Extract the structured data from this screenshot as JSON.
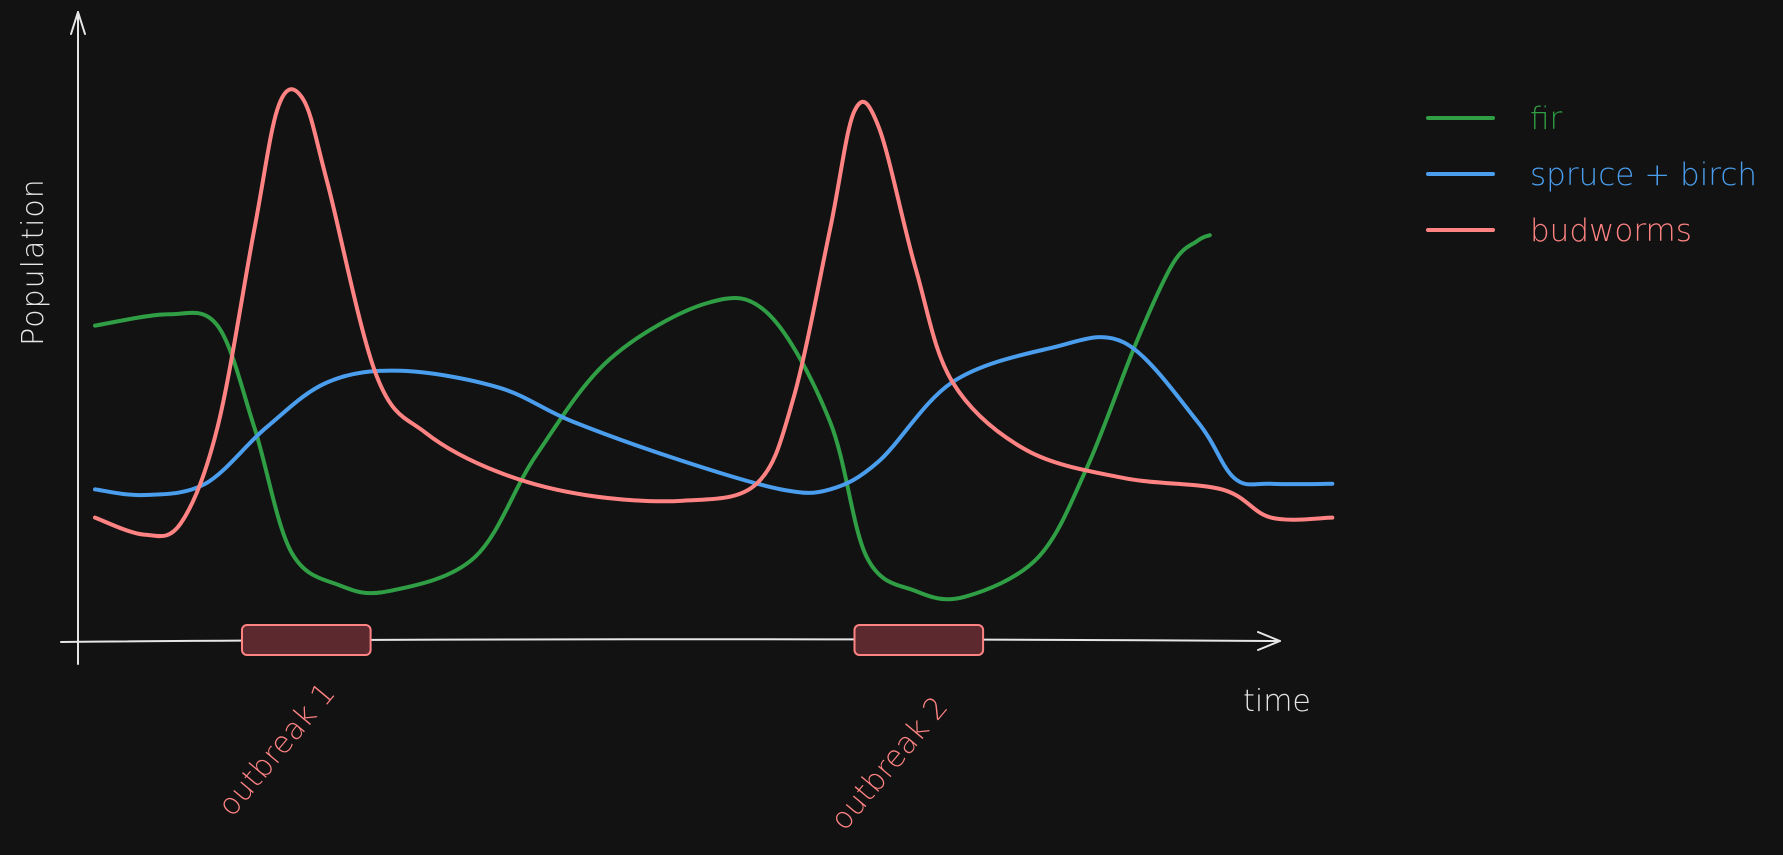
{
  "chart_data": {
    "type": "line",
    "title": "",
    "xlabel": "time",
    "ylabel": "Population",
    "xlim": [
      0,
      100
    ],
    "ylim": [
      0,
      100
    ],
    "grid": false,
    "legend_position": "top-right",
    "series": [
      {
        "name": "fir",
        "color": "#2f9e44",
        "points": [
          [
            0,
            53
          ],
          [
            6,
            55
          ],
          [
            10,
            53
          ],
          [
            13,
            35
          ],
          [
            16,
            13
          ],
          [
            20,
            7
          ],
          [
            24,
            6
          ],
          [
            31,
            12
          ],
          [
            36,
            30
          ],
          [
            42,
            47
          ],
          [
            50,
            57
          ],
          [
            55,
            55
          ],
          [
            60,
            36
          ],
          [
            63,
            12
          ],
          [
            67,
            6
          ],
          [
            71,
            5
          ],
          [
            77,
            12
          ],
          [
            81,
            28
          ],
          [
            85,
            50
          ],
          [
            88,
            64
          ],
          [
            90,
            68
          ],
          [
            91,
            69
          ]
        ]
      },
      {
        "name": "spruce + birch",
        "color": "#4a9eed",
        "points": [
          [
            0,
            24
          ],
          [
            4,
            23
          ],
          [
            9,
            25
          ],
          [
            14,
            35
          ],
          [
            19,
            43
          ],
          [
            25,
            45
          ],
          [
            33,
            42
          ],
          [
            39,
            36
          ],
          [
            48,
            29
          ],
          [
            56,
            24
          ],
          [
            60,
            24
          ],
          [
            64,
            29
          ],
          [
            70,
            43
          ],
          [
            78,
            49
          ],
          [
            84,
            50
          ],
          [
            90,
            36
          ],
          [
            93,
            26
          ],
          [
            96,
            25
          ],
          [
            101,
            25
          ]
        ]
      },
      {
        "name": "budworms",
        "color": "#ff8383",
        "points": [
          [
            0,
            19
          ],
          [
            4,
            16
          ],
          [
            7,
            18
          ],
          [
            10,
            35
          ],
          [
            13,
            70
          ],
          [
            15,
            92
          ],
          [
            17,
            93
          ],
          [
            19,
            78
          ],
          [
            23,
            44
          ],
          [
            27,
            34
          ],
          [
            33,
            27
          ],
          [
            40,
            23
          ],
          [
            48,
            22
          ],
          [
            54,
            25
          ],
          [
            57,
            40
          ],
          [
            60,
            70
          ],
          [
            62,
            91
          ],
          [
            64,
            88
          ],
          [
            67,
            63
          ],
          [
            70,
            43
          ],
          [
            76,
            31
          ],
          [
            84,
            26
          ],
          [
            92,
            24
          ],
          [
            96,
            19
          ],
          [
            101,
            19
          ]
        ]
      }
    ],
    "annotations": [
      {
        "label": "outbreak 1",
        "x_range": [
          12,
          22.5
        ]
      },
      {
        "label": "outbreak 2",
        "x_range": [
          62,
          72.5
        ]
      }
    ]
  }
}
